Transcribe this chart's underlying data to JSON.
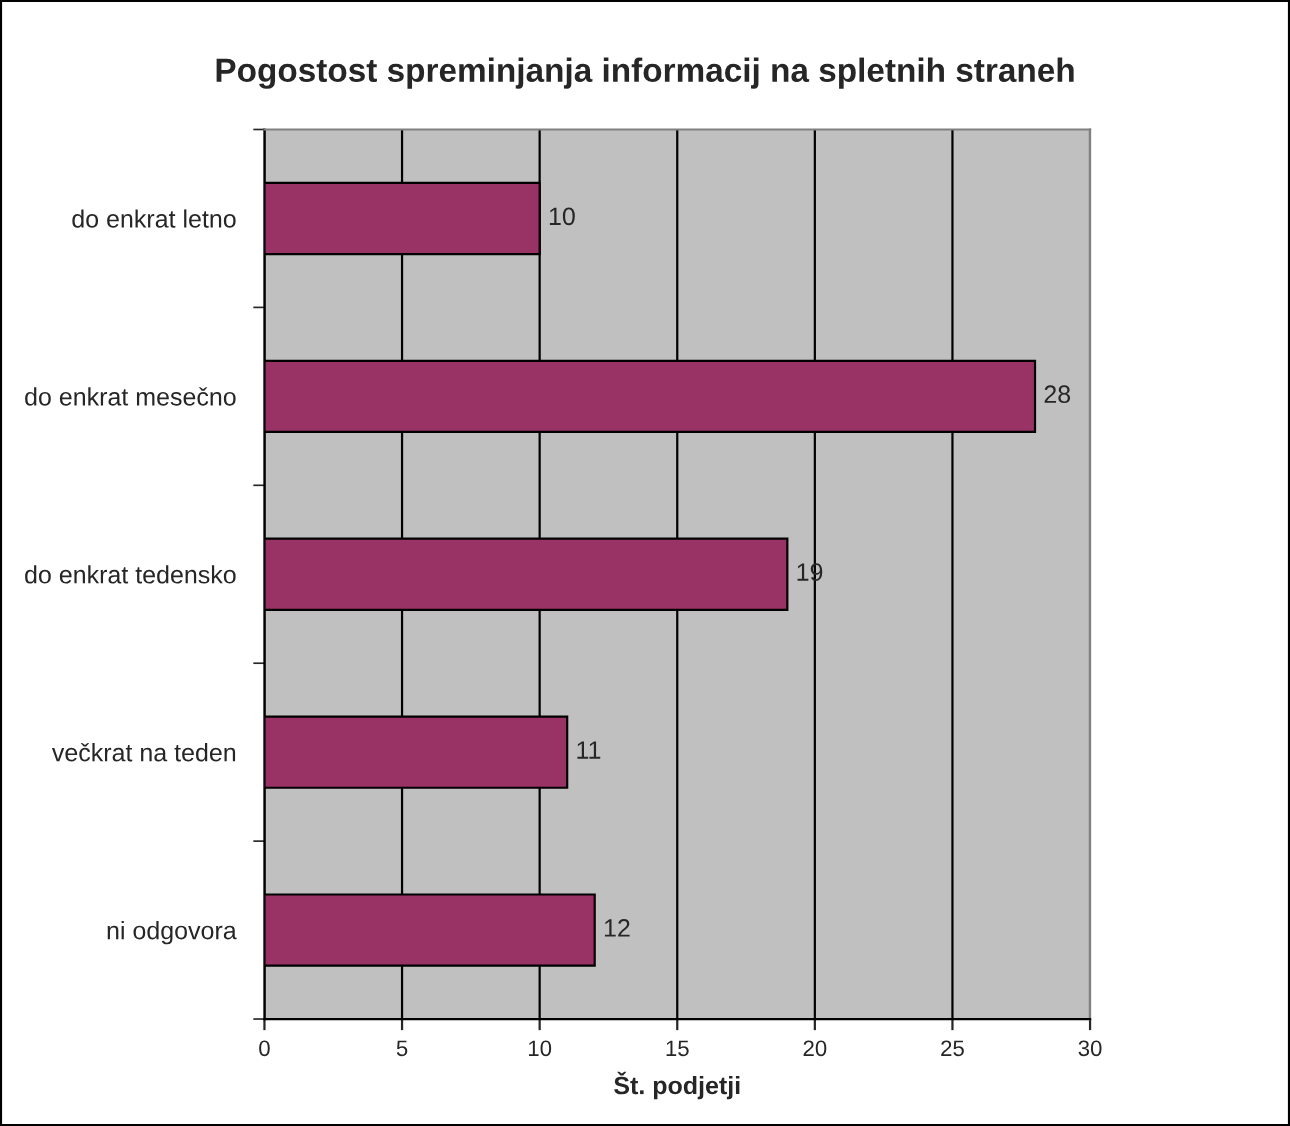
{
  "chart_data": {
    "type": "bar",
    "orientation": "horizontal",
    "title": "Pogostost spreminjanja informacij na spletnih straneh",
    "xlabel": "Št. podjetji",
    "categories": [
      "do enkrat letno",
      "do enkrat mesečno",
      "do enkrat tedensko",
      "večkrat na teden",
      "ni odgovora"
    ],
    "values": [
      10,
      28,
      19,
      11,
      12
    ],
    "color": "#993366",
    "data_labels": true,
    "xlim": [
      0,
      30
    ],
    "xticks": [
      0,
      5,
      10,
      15,
      20,
      25,
      30
    ],
    "grid": "x",
    "legend": false
  }
}
